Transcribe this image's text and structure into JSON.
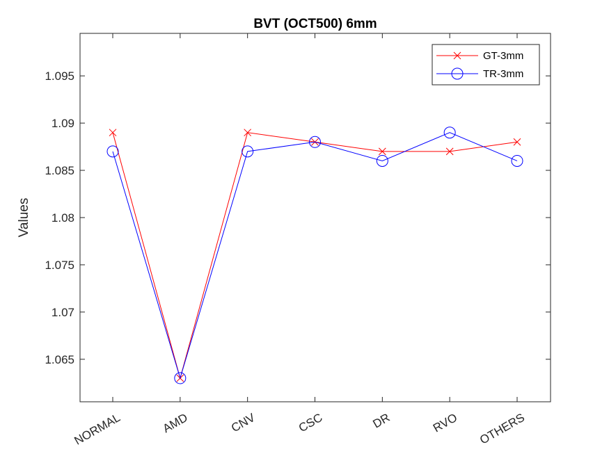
{
  "chart_data": {
    "type": "line",
    "title": "BVT (OCT500) 6mm",
    "xlabel": "",
    "ylabel": "Values",
    "categories": [
      "NORMAL",
      "AMD",
      "CNV",
      "CSC",
      "DR",
      "RVO",
      "OTHERS"
    ],
    "ylim": [
      1.0605,
      1.0995
    ],
    "yticks": [
      "1.065",
      "1.07",
      "1.075",
      "1.08",
      "1.085",
      "1.09",
      "1.095"
    ],
    "ytick_values": [
      1.065,
      1.07,
      1.075,
      1.08,
      1.085,
      1.09,
      1.095
    ],
    "grid": false,
    "legend_position": "top-right",
    "series": [
      {
        "name": "GT-3mm",
        "color": "#ff0000",
        "marker": "x",
        "values": [
          1.089,
          1.063,
          1.089,
          1.088,
          1.087,
          1.087,
          1.088
        ]
      },
      {
        "name": "TR-3mm",
        "color": "#0000ff",
        "marker": "circle",
        "values": [
          1.087,
          1.063,
          1.087,
          1.088,
          1.086,
          1.089,
          1.086
        ]
      }
    ]
  }
}
